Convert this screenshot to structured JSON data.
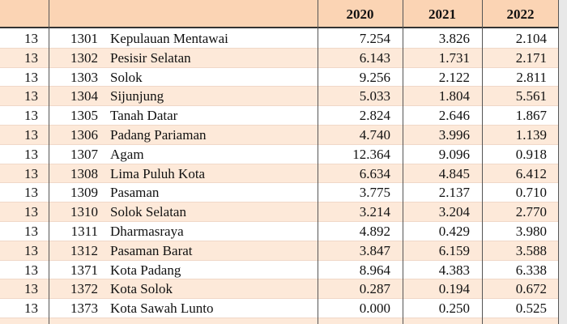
{
  "table": {
    "years": [
      "2020",
      "2021",
      "2022"
    ],
    "rows": [
      [
        "13",
        "1301",
        "Kepulauan Mentawai",
        "7.254",
        "3.826",
        "2.104"
      ],
      [
        "13",
        "1302",
        "Pesisir Selatan",
        "6.143",
        "1.731",
        "2.171"
      ],
      [
        "13",
        "1303",
        "Solok",
        "9.256",
        "2.122",
        "2.811"
      ],
      [
        "13",
        "1304",
        "Sijunjung",
        "5.033",
        "1.804",
        "5.561"
      ],
      [
        "13",
        "1305",
        "Tanah Datar",
        "2.824",
        "2.646",
        "1.867"
      ],
      [
        "13",
        "1306",
        "Padang Pariaman",
        "4.740",
        "3.996",
        "1.139"
      ],
      [
        "13",
        "1307",
        "Agam",
        "12.364",
        "9.096",
        "0.918"
      ],
      [
        "13",
        "1308",
        "Lima Puluh Kota",
        "6.634",
        "4.845",
        "6.412"
      ],
      [
        "13",
        "1309",
        "Pasaman",
        "3.775",
        "2.137",
        "0.710"
      ],
      [
        "13",
        "1310",
        "Solok Selatan",
        "3.214",
        "3.204",
        "2.770"
      ],
      [
        "13",
        "1311",
        "Dharmasraya",
        "4.892",
        "0.429",
        "3.980"
      ],
      [
        "13",
        "1312",
        "Pasaman Barat",
        "3.847",
        "6.159",
        "3.588"
      ],
      [
        "13",
        "1371",
        "Kota Padang",
        "8.964",
        "4.383",
        "6.338"
      ],
      [
        "13",
        "1372",
        "Kota Solok",
        "0.287",
        "0.194",
        "0.672"
      ],
      [
        "13",
        "1373",
        "Kota Sawah Lunto",
        "0.000",
        "0.250",
        "0.525"
      ]
    ]
  }
}
